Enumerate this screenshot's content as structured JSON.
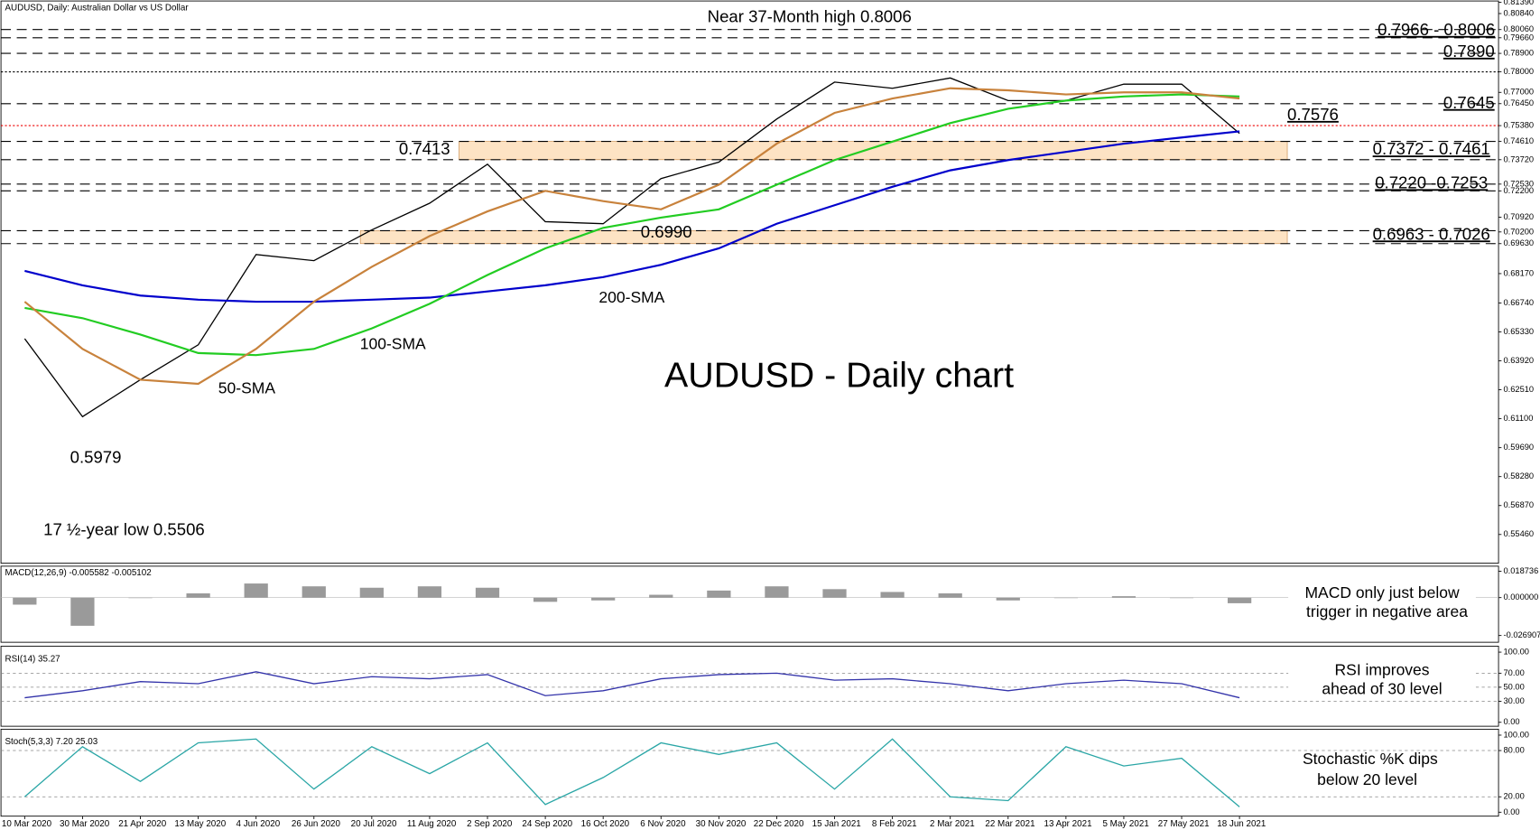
{
  "chart_data": [
    {
      "type": "line",
      "header": "AUDUSD, Daily:  Australian Dollar vs US Dollar",
      "title": "AUDUSD - Daily chart",
      "categories": [
        "10 Mar 2020",
        "30 Mar 2020",
        "21 Apr 2020",
        "13 May 2020",
        "4 Jun 2020",
        "26 Jun 2020",
        "20 Jul 2020",
        "11 Aug 2020",
        "2 Sep 2020",
        "24 Sep 2020",
        "16 Oct 2020",
        "6 Nov 2020",
        "30 Nov 2020",
        "22 Dec 2020",
        "15 Jan 2021",
        "8 Feb 2021",
        "2 Mar 2021",
        "22 Mar 2021",
        "13 Apr 2021",
        "5 May 2021",
        "27 May 2021",
        "18 Jun 2021"
      ],
      "series": [
        {
          "color": "#000000",
          "values": [
            0.65,
            0.612,
            0.63,
            0.647,
            0.691,
            0.688,
            0.703,
            0.716,
            0.735,
            0.707,
            0.706,
            0.728,
            0.736,
            0.757,
            0.775,
            0.772,
            0.777,
            0.766,
            0.766,
            0.774,
            0.774,
            0.75
          ]
        },
        {
          "name": "200-SMA",
          "color": "#0000cc",
          "values": [
            0.683,
            0.676,
            0.671,
            0.669,
            0.668,
            0.668,
            0.669,
            0.67,
            0.673,
            0.676,
            0.68,
            0.686,
            0.694,
            0.706,
            0.715,
            0.724,
            0.732,
            0.737,
            0.741,
            0.745,
            0.748,
            0.751
          ]
        },
        {
          "name": "100-SMA",
          "color": "#22cc22",
          "values": [
            0.665,
            0.66,
            0.652,
            0.643,
            0.642,
            0.645,
            0.655,
            0.667,
            0.681,
            0.694,
            0.704,
            0.709,
            0.713,
            0.725,
            0.737,
            0.746,
            0.755,
            0.762,
            0.766,
            0.768,
            0.769,
            0.768
          ]
        },
        {
          "name": "50-SMA",
          "color": "#c8823c",
          "values": [
            0.668,
            0.645,
            0.63,
            0.628,
            0.645,
            0.668,
            0.685,
            0.7,
            0.712,
            0.722,
            0.717,
            0.713,
            0.725,
            0.745,
            0.76,
            0.767,
            0.772,
            0.771,
            0.769,
            0.77,
            0.77,
            0.767
          ]
        }
      ],
      "levels": [
        0.8006,
        0.7966,
        0.789,
        0.78,
        0.7645,
        0.7538,
        0.7461,
        0.7372,
        0.7253,
        0.722,
        0.7026,
        0.6963
      ],
      "annotations": [
        "Near 37-Month high 0.8006",
        "0.7966 - 0.8006",
        "0.7890",
        "0.7645",
        "0.7576",
        "0.7413",
        "0.7372 - 0.7461",
        "0.7220 -0.7253",
        "0.6963 - 0.7026",
        "0.6990",
        "0.5979",
        "17 ½-year low 0.5506"
      ],
      "ylim": [
        0.5406,
        0.815
      ],
      "yticks": [
        {
          "value": 0.8139,
          "label": "0.81390"
        },
        {
          "value": 0.8084,
          "label": "0.80840"
        },
        {
          "value": 0.8006,
          "label": "0.80060"
        },
        {
          "value": 0.7966,
          "label": "0.79660"
        },
        {
          "value": 0.789,
          "label": "0.78900"
        },
        {
          "value": 0.78,
          "label": "0.78000"
        },
        {
          "value": 0.77,
          "label": "0.77000"
        },
        {
          "value": 0.7645,
          "label": "0.76450"
        },
        {
          "value": 0.7538,
          "label": "0.75380"
        },
        {
          "value": 0.7461,
          "label": "0.74610"
        },
        {
          "value": 0.7372,
          "label": "0.73720"
        },
        {
          "value": 0.7253,
          "label": "0.72530"
        },
        {
          "value": 0.722,
          "label": "0.72200"
        },
        {
          "value": 0.7092,
          "label": "0.70920"
        },
        {
          "value": 0.702,
          "label": "0.70200"
        },
        {
          "value": 0.6963,
          "label": "0.69630"
        },
        {
          "value": 0.6817,
          "label": "0.68170"
        },
        {
          "value": 0.6674,
          "label": "0.66740"
        },
        {
          "value": 0.6533,
          "label": "0.65330"
        },
        {
          "value": 0.6392,
          "label": "0.63920"
        },
        {
          "value": 0.6251,
          "label": "0.62510"
        },
        {
          "value": 0.611,
          "label": "0.61100"
        },
        {
          "value": 0.5969,
          "label": "0.59690"
        },
        {
          "value": 0.5828,
          "label": "0.58280"
        },
        {
          "value": 0.5687,
          "label": "0.56870"
        },
        {
          "value": 0.5546,
          "label": "0.55460"
        }
      ]
    },
    {
      "type": "bar",
      "header": "MACD(12,26,9) -0.005582 -0.005102",
      "annotations": [
        "MACD only just below",
        "trigger in negative area"
      ],
      "color": "#9a9a9a",
      "values": [
        -0.005,
        -0.02,
        0.0,
        0.003,
        0.01,
        0.008,
        0.007,
        0.008,
        0.007,
        -0.003,
        -0.002,
        0.002,
        0.005,
        0.008,
        0.006,
        0.004,
        0.003,
        -0.002,
        0.0,
        0.001,
        0.0,
        -0.004
      ],
      "ylim": [
        -0.0317,
        0.0223
      ],
      "yticks": [
        {
          "value": 0.018736,
          "label": "0.018736"
        },
        {
          "value": 0,
          "label": "0.000000"
        },
        {
          "value": -0.026907,
          "label": "-0.026907"
        }
      ]
    },
    {
      "type": "line",
      "header": "RSI(14) 35.27",
      "annotations": [
        "RSI improves",
        "ahead of 30 level"
      ],
      "series": [
        {
          "color": "#3333aa",
          "values": [
            35,
            45,
            58,
            55,
            72,
            55,
            65,
            62,
            68,
            38,
            45,
            62,
            68,
            70,
            60,
            62,
            55,
            45,
            55,
            60,
            55,
            35
          ]
        }
      ],
      "ylim": [
        0,
        100
      ],
      "yticks": [
        {
          "value": 100,
          "label": "100.00"
        },
        {
          "value": 70,
          "label": "70.00"
        },
        {
          "value": 50,
          "label": "50.00"
        },
        {
          "value": 30,
          "label": "30.00"
        },
        {
          "value": 0,
          "label": "0.00"
        }
      ]
    },
    {
      "type": "line",
      "header": "Stoch(5,3,3) 7.20 25.03",
      "annotations": [
        "Stochastic %K dips",
        "below 20 level"
      ],
      "series": [
        {
          "color": "#2aa6a6",
          "values": [
            20,
            85,
            40,
            90,
            95,
            30,
            85,
            50,
            90,
            10,
            45,
            90,
            75,
            90,
            30,
            95,
            20,
            15,
            85,
            60,
            70,
            7
          ]
        }
      ],
      "ylim": [
        0,
        100
      ],
      "yticks": [
        {
          "value": 100,
          "label": "100.00"
        },
        {
          "value": 80,
          "label": "80.00"
        },
        {
          "value": 20,
          "label": "20.00"
        },
        {
          "value": 0,
          "label": "0.00"
        }
      ]
    }
  ]
}
